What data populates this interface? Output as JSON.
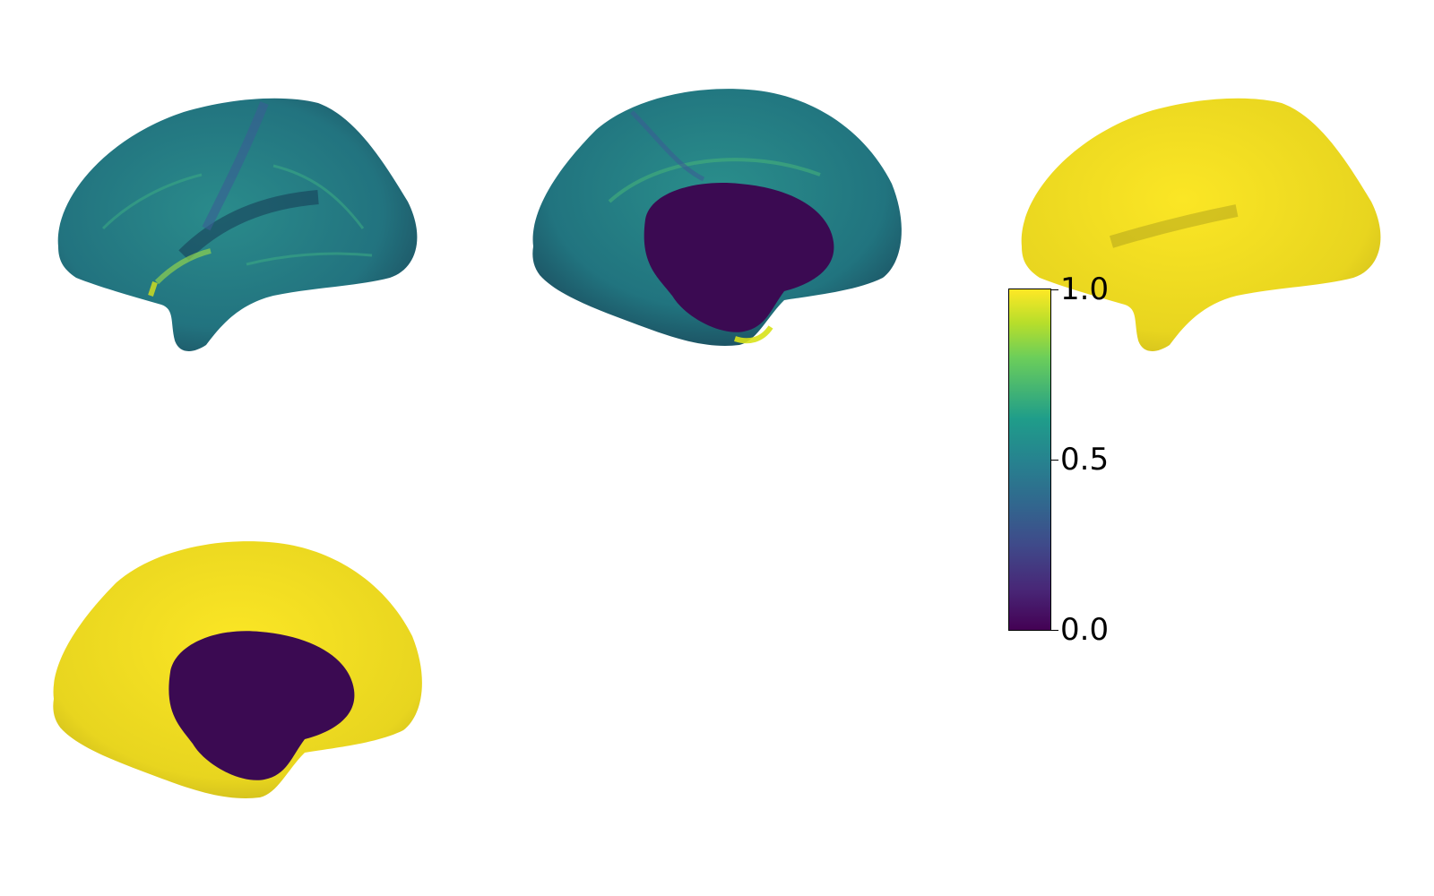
{
  "figure": {
    "colormap": "viridis",
    "colors": {
      "min": "#440154",
      "mid": "#26838f",
      "max": "#fde725",
      "background": "#ffffff"
    }
  },
  "colorbar": {
    "range": [
      0.0,
      1.0
    ],
    "ticks": [
      {
        "value": 1.0,
        "label": "1.0"
      },
      {
        "value": 0.5,
        "label": "0.5"
      },
      {
        "value": 0.0,
        "label": "0.0"
      }
    ]
  },
  "panels": {
    "lateral_left": {
      "view": "lateral",
      "hemisphere": "left"
    },
    "medial_left": {
      "view": "medial",
      "hemisphere": "left"
    },
    "lateral_right": {
      "view": "lateral",
      "hemisphere": "right"
    },
    "medial_bottom": {
      "view": "medial",
      "hemisphere": "right"
    }
  }
}
